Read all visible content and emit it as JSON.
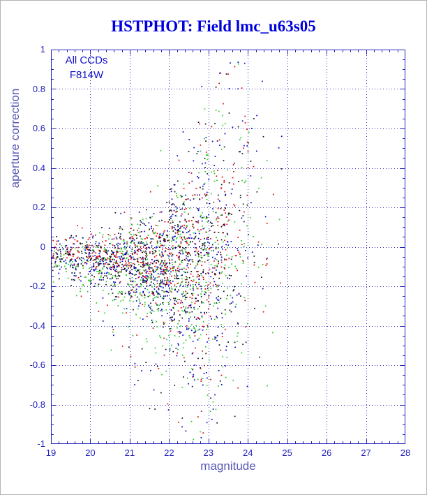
{
  "colors": {
    "background": "#ffffff",
    "frame": "#2222bb",
    "grid": "#3434bb",
    "tick_text": "#2222bb",
    "axis_label": "#5858b8",
    "title": "#0000dd",
    "legend_text": "#1111cc",
    "point_red": "#dd0000",
    "point_green": "#22cc22",
    "point_blue": "#0000cc",
    "point_black": "#111111"
  },
  "chart_data": {
    "type": "scatter",
    "title": "HSTPHOT: Field lmc_u63s05",
    "xlabel": "magnitude",
    "ylabel": "aperture correction",
    "xlim": [
      19,
      28
    ],
    "ylim": [
      -1,
      1
    ],
    "x_ticks": [
      19,
      20,
      21,
      22,
      23,
      24,
      25,
      26,
      27,
      28
    ],
    "y_ticks": [
      -1,
      -0.8,
      -0.6,
      -0.4,
      -0.2,
      0,
      0.2,
      0.4,
      0.6,
      0.8,
      1
    ],
    "x_minor_step": 0.2,
    "y_minor_step": 0.05,
    "grid": {
      "style": "dotted",
      "on": true
    },
    "legend_position": "top-left-inside",
    "annotations": [
      "All CCDs",
      "F814W"
    ],
    "series": [
      {
        "name": "points-red",
        "color": "#dd0000",
        "seed": 20113,
        "mean_offset": 0.025,
        "sigma_scale": 0.85
      },
      {
        "name": "points-green",
        "color": "#22cc22",
        "seed": 48271,
        "mean_offset": -0.025,
        "sigma_scale": 1.2
      },
      {
        "name": "points-blue",
        "color": "#0000cc",
        "seed": 69621,
        "mean_offset": -0.01,
        "sigma_scale": 1.05
      },
      {
        "name": "points-black",
        "color": "#111111",
        "seed": 95717,
        "mean_offset": 0.005,
        "sigma_scale": 1.0
      }
    ],
    "density_bins": [
      {
        "x0": 19.0,
        "x1": 19.5,
        "n": 25,
        "mean": -0.05,
        "sigma": 0.045,
        "tail_n": 0,
        "tail_lo": 0,
        "tail_hi": 0
      },
      {
        "x0": 19.5,
        "x1": 20.0,
        "n": 32,
        "mean": -0.06,
        "sigma": 0.055,
        "tail_n": 1,
        "tail_lo": -0.3,
        "tail_hi": -0.15
      },
      {
        "x0": 20.0,
        "x1": 20.5,
        "n": 42,
        "mean": -0.07,
        "sigma": 0.065,
        "tail_n": 2,
        "tail_lo": -0.4,
        "tail_hi": -0.15
      },
      {
        "x0": 20.5,
        "x1": 21.0,
        "n": 55,
        "mean": -0.08,
        "sigma": 0.085,
        "tail_n": 3,
        "tail_lo": -0.55,
        "tail_hi": -0.2
      },
      {
        "x0": 21.0,
        "x1": 21.5,
        "n": 70,
        "mean": -0.09,
        "sigma": 0.105,
        "tail_n": 4,
        "tail_lo": -0.75,
        "tail_hi": -0.2
      },
      {
        "x0": 21.5,
        "x1": 22.0,
        "n": 80,
        "mean": -0.1,
        "sigma": 0.14,
        "tail_n": 6,
        "tail_lo": -0.85,
        "tail_hi": -0.2
      },
      {
        "x0": 22.0,
        "x1": 22.5,
        "n": 85,
        "mean": -0.1,
        "sigma": 0.2,
        "tail_n": 8,
        "tail_lo": -0.95,
        "tail_hi": 0.35
      },
      {
        "x0": 22.5,
        "x1": 23.0,
        "n": 75,
        "mean": -0.08,
        "sigma": 0.28,
        "tail_n": 10,
        "tail_lo": -1.0,
        "tail_hi": 0.75
      },
      {
        "x0": 23.0,
        "x1": 23.5,
        "n": 50,
        "mean": -0.05,
        "sigma": 0.35,
        "tail_n": 9,
        "tail_lo": -1.0,
        "tail_hi": 0.9
      },
      {
        "x0": 23.5,
        "x1": 24.0,
        "n": 26,
        "mean": 0.0,
        "sigma": 0.4,
        "tail_n": 6,
        "tail_lo": -0.9,
        "tail_hi": 0.95
      },
      {
        "x0": 24.0,
        "x1": 24.5,
        "n": 9,
        "mean": 0.05,
        "sigma": 0.35,
        "tail_n": 2,
        "tail_lo": -0.5,
        "tail_hi": 0.7
      },
      {
        "x0": 24.5,
        "x1": 24.9,
        "n": 2,
        "mean": 0.1,
        "sigma": 0.3,
        "tail_n": 0,
        "tail_lo": 0,
        "tail_hi": 0
      }
    ]
  }
}
